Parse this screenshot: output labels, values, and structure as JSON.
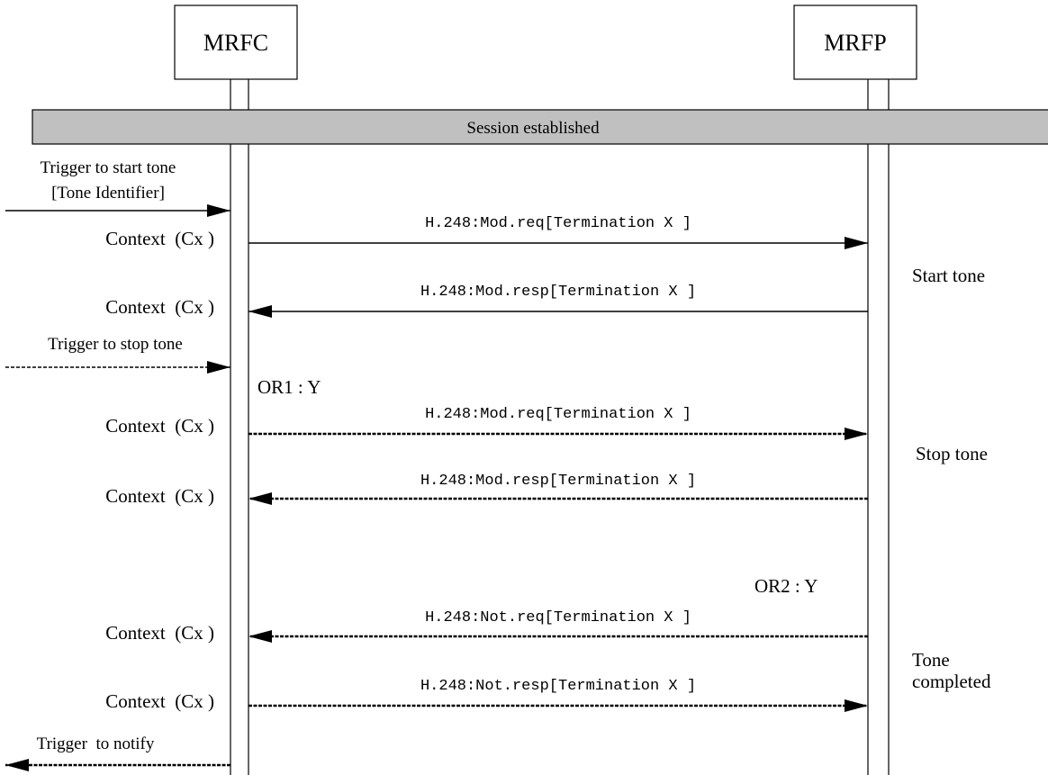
{
  "participants": {
    "mrfc": "MRFC",
    "mrfp": "MRFP"
  },
  "banner": "Session established",
  "triggers": {
    "start_line1": "Trigger to start tone",
    "start_line2": "[Tone Identifier]",
    "stop": "Trigger to stop tone",
    "notify": "Trigger  to notify"
  },
  "context_label": "Context  (Cx )",
  "messages": [
    "H.248:Mod.req[Termination X ]",
    "H.248:Mod.resp[Termination X ]",
    "H.248:Mod.req[Termination X ]",
    "H.248:Mod.resp[Termination X ]",
    "H.248:Not.req[Termination X ]",
    "H.248:Not.resp[Termination X ]"
  ],
  "or_labels": {
    "or1": "OR1 : Y",
    "or2": "OR2 : Y"
  },
  "phases": {
    "start": "Start tone",
    "stop": "Stop tone",
    "completed_line1": "Tone",
    "completed_line2": "completed"
  },
  "colors": {
    "line": "#000000",
    "banner_fill": "#c0c0c0"
  }
}
